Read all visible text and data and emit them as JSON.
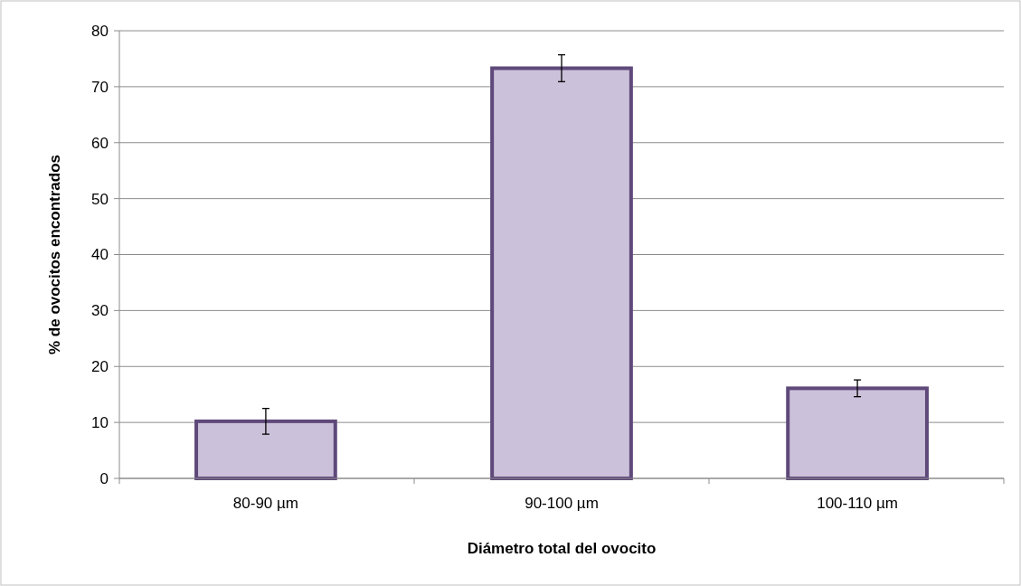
{
  "chart_data": {
    "type": "bar",
    "xlabel": "Diámetro total  del ovocito",
    "ylabel": "%  de ovocitos encontrados",
    "categories": [
      "80-90 µm",
      "90-100 µm",
      "100-110 µm"
    ],
    "values": [
      10.2,
      73.3,
      16.1
    ],
    "errors": [
      2.3,
      2.4,
      1.5
    ],
    "color": "#ccc1da",
    "ylim": [
      0,
      80
    ],
    "yticks": [
      0,
      10,
      20,
      30,
      40,
      50,
      60,
      70,
      80
    ],
    "grid": "y"
  }
}
